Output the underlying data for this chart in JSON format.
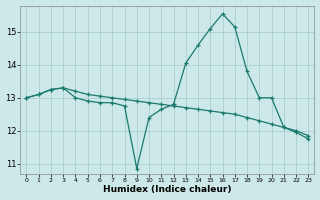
{
  "xlabel": "Humidex (Indice chaleur)",
  "background_color": "#cde8e8",
  "grid_color": "#aacece",
  "line_color": "#1a7a6e",
  "xlim": [
    -0.5,
    23.5
  ],
  "ylim": [
    10.7,
    15.8
  ],
  "xticks": [
    0,
    1,
    2,
    3,
    4,
    5,
    6,
    7,
    8,
    9,
    10,
    11,
    12,
    13,
    14,
    15,
    16,
    17,
    18,
    19,
    20,
    21,
    22,
    23
  ],
  "yticks": [
    11,
    12,
    13,
    14,
    15
  ],
  "line1_x": [
    0,
    1,
    2,
    3,
    4,
    5,
    6,
    7,
    8,
    9,
    10,
    11,
    12,
    13,
    14,
    15,
    16,
    17,
    18,
    19,
    20,
    21,
    22,
    23
  ],
  "line1_y": [
    13.0,
    13.1,
    13.25,
    13.3,
    13.2,
    13.1,
    13.05,
    13.0,
    12.95,
    12.9,
    12.85,
    12.8,
    12.75,
    12.7,
    12.65,
    12.6,
    12.55,
    12.5,
    12.4,
    12.3,
    12.2,
    12.1,
    12.0,
    11.85
  ],
  "line2_x": [
    0,
    1,
    2,
    3,
    4,
    5,
    6,
    7,
    8,
    9,
    10,
    11,
    12,
    13,
    14,
    15,
    16,
    17,
    18,
    19,
    20,
    21,
    22,
    23
  ],
  "line2_y": [
    13.0,
    13.1,
    13.25,
    13.3,
    13.0,
    12.9,
    12.85,
    12.85,
    12.75,
    10.85,
    12.4,
    12.65,
    12.8,
    14.05,
    14.6,
    15.1,
    15.55,
    15.15,
    13.8,
    13.0,
    13.0,
    12.1,
    11.95,
    11.75
  ]
}
